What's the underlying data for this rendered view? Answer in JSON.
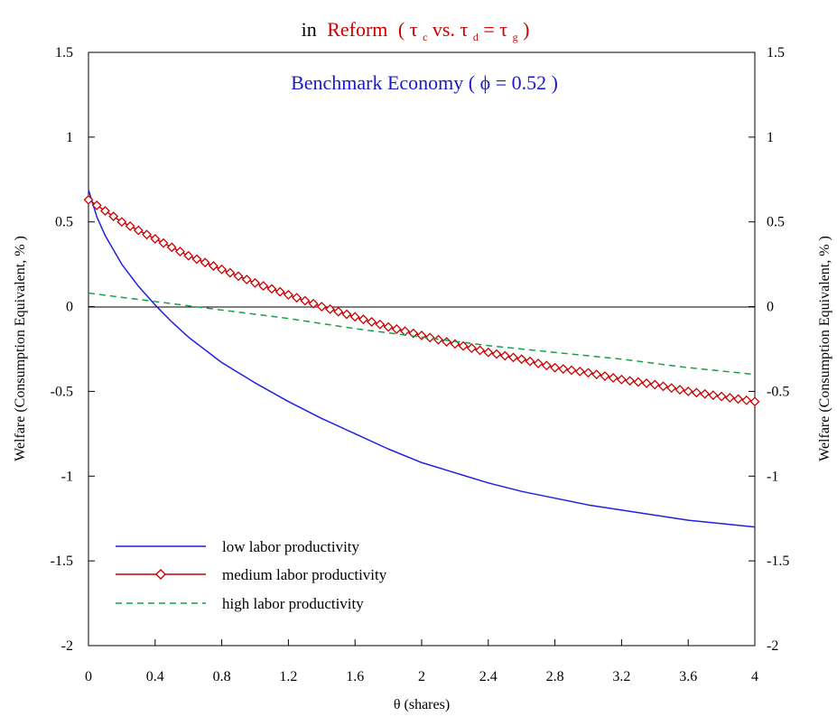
{
  "chart_data": {
    "type": "line",
    "title": {
      "prefix": "in",
      "main": "Reform",
      "formula": {
        "open": "( ",
        "t1": "τ",
        "s1": "c",
        "mid": " vs. ",
        "t2": "τ",
        "s2": "d",
        "eq": "=",
        "t3": "τ",
        "s3": "g",
        "close": " )"
      },
      "prefix_color": "#000000",
      "main_color": "#cc0000"
    },
    "annotation": {
      "text": "Benchmark Economy ( ϕ = 0.52 )",
      "color": "#1a1acc"
    },
    "xlabel": "θ (shares)",
    "ylabel_left": "Welfare (Consumption Equivalent, % )",
    "ylabel_right": "Welfare (Consumption Equivalent, % )",
    "xlim": [
      0,
      4
    ],
    "ylim": [
      -2,
      1.5
    ],
    "x_ticks": [
      "0",
      "0.4",
      "0.8",
      "1.2",
      "1.6",
      "2",
      "2.4",
      "2.8",
      "3.2",
      "3.6",
      "4"
    ],
    "y_ticks": [
      "1.5",
      "1",
      "0.5",
      "0",
      "-0.5",
      "-1",
      "-1.5",
      "-2"
    ],
    "zero_line": true,
    "grid": false,
    "legend": {
      "position": "bottom-left",
      "entries": [
        "low labor productivity",
        "medium labor productivity",
        "high labor productivity"
      ]
    },
    "series": [
      {
        "name": "low labor productivity",
        "color": "#2020e0",
        "style": "solid",
        "marker": "none",
        "x": [
          0,
          0.05,
          0.1,
          0.2,
          0.3,
          0.4,
          0.5,
          0.6,
          0.8,
          1.0,
          1.2,
          1.4,
          1.6,
          1.8,
          2.0,
          2.2,
          2.4,
          2.6,
          2.8,
          3.0,
          3.2,
          3.4,
          3.6,
          3.8,
          4.0
        ],
        "y": [
          0.69,
          0.53,
          0.42,
          0.25,
          0.12,
          0.01,
          -0.09,
          -0.18,
          -0.33,
          -0.45,
          -0.56,
          -0.66,
          -0.75,
          -0.84,
          -0.92,
          -0.98,
          -1.04,
          -1.09,
          -1.13,
          -1.17,
          -1.2,
          -1.23,
          -1.26,
          -1.28,
          -1.3
        ]
      },
      {
        "name": "medium labor productivity",
        "color": "#cc0000",
        "style": "solid",
        "marker": "diamond",
        "x": [
          0,
          0.2,
          0.4,
          0.6,
          0.8,
          1.0,
          1.2,
          1.4,
          1.6,
          1.8,
          2.0,
          2.2,
          2.4,
          2.6,
          2.8,
          3.0,
          3.2,
          3.4,
          3.6,
          3.8,
          4.0
        ],
        "y": [
          0.63,
          0.5,
          0.4,
          0.3,
          0.22,
          0.14,
          0.07,
          0.0,
          -0.06,
          -0.12,
          -0.17,
          -0.22,
          -0.27,
          -0.31,
          -0.36,
          -0.39,
          -0.43,
          -0.46,
          -0.5,
          -0.53,
          -0.56
        ]
      },
      {
        "name": "high labor productivity",
        "color": "#1a9e4a",
        "style": "dashed",
        "marker": "none",
        "x": [
          0,
          0.4,
          0.8,
          1.2,
          1.6,
          2.0,
          2.4,
          2.8,
          3.2,
          3.6,
          4.0
        ],
        "y": [
          0.08,
          0.03,
          -0.02,
          -0.07,
          -0.13,
          -0.18,
          -0.23,
          -0.27,
          -0.31,
          -0.36,
          -0.4
        ]
      }
    ]
  }
}
